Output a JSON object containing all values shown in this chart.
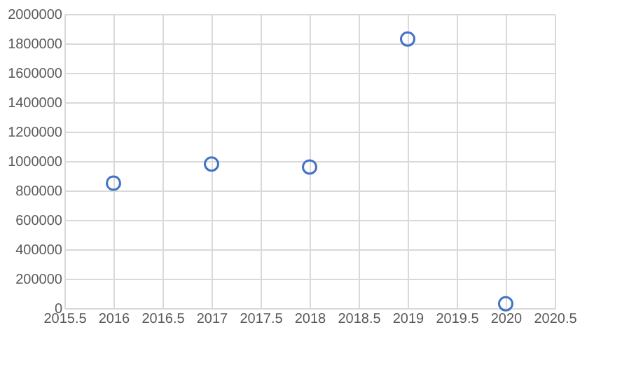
{
  "chart_data": {
    "type": "scatter",
    "x": [
      2016,
      2017,
      2018,
      2019,
      2020
    ],
    "series": [
      {
        "color": "#4472c4",
        "values": [
          850000,
          980000,
          960000,
          1830000,
          30000
        ]
      }
    ],
    "xlim": [
      2015.5,
      2020.5
    ],
    "xticks": [
      2015.5,
      2016,
      2016.5,
      2017,
      2017.5,
      2018,
      2018.5,
      2019,
      2019.5,
      2020,
      2020.5
    ],
    "ylim": [
      0,
      2000000
    ],
    "yticks": [
      0,
      200000,
      400000,
      600000,
      800000,
      1000000,
      1200000,
      1400000,
      1600000,
      1800000,
      2000000
    ],
    "grid": true,
    "marker": "circle"
  }
}
